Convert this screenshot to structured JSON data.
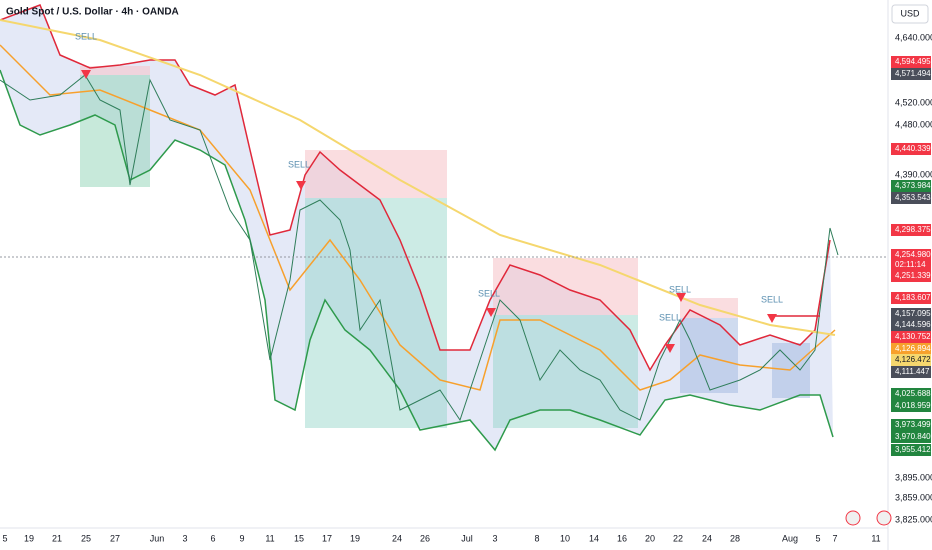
{
  "header": {
    "title": "Gold Spot / U.S. Dollar · 4h · OANDA",
    "currency": "USD"
  },
  "price_axis": {
    "labels": [
      "4,640.000",
      "4,520.000",
      "4,480.000",
      "4,390.000",
      "3,895.000",
      "3,859.000",
      "3,825.000"
    ]
  },
  "price_badges": [
    {
      "text": "4,594.495",
      "color": "#f23645"
    },
    {
      "text": "4,571.494",
      "color": "#4a4e5a"
    },
    {
      "text": "4,440.339",
      "color": "#f23645"
    },
    {
      "text": "4,373.984",
      "color": "#22853f"
    },
    {
      "text": "4,353.543",
      "color": "#4a4e5a"
    },
    {
      "text": "4,298.375",
      "color": "#f23645"
    },
    {
      "text": "4,254.980",
      "color": "#f23645"
    },
    {
      "text": "02:11:14",
      "color": "#f23645"
    },
    {
      "text": "4,251.339",
      "color": "#f23645"
    },
    {
      "text": "4,183.607",
      "color": "#f23645"
    },
    {
      "text": "4,157.095",
      "color": "#4a4e5a"
    },
    {
      "text": "4,144.596",
      "color": "#4a4e5a"
    },
    {
      "text": "4,130.752",
      "color": "#f23645"
    },
    {
      "text": "4,126.894",
      "color": "#f7a02c"
    },
    {
      "text": "4,126.472",
      "color": "#f5d76e"
    },
    {
      "text": "4,111.447",
      "color": "#4a4e5a"
    },
    {
      "text": "4,025.688",
      "color": "#22853f"
    },
    {
      "text": "4,018.959",
      "color": "#22853f"
    },
    {
      "text": "3,973.499",
      "color": "#22853f"
    },
    {
      "text": "3,970.840",
      "color": "#22853f"
    },
    {
      "text": "3,955.412",
      "color": "#22853f"
    }
  ],
  "time_axis": {
    "labels": [
      "5",
      "19",
      "21",
      "25",
      "27",
      "Jun",
      "3",
      "6",
      "9",
      "11",
      "15",
      "17",
      "19",
      "24",
      "26",
      "Jul",
      "3",
      "8",
      "10",
      "14",
      "16",
      "20",
      "22",
      "24",
      "28",
      "Aug",
      "5",
      "7",
      "11"
    ]
  },
  "annotations": [
    "SELL",
    "SELL",
    "SELL",
    "SELL",
    "SELL",
    "SELL"
  ]
}
